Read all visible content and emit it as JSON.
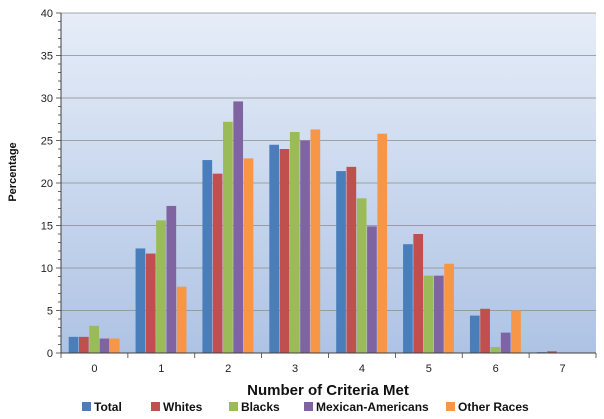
{
  "chart_data": {
    "type": "bar",
    "title": "",
    "xlabel": "Number of Criteria Met",
    "ylabel": "Percentage",
    "categories": [
      "0",
      "1",
      "2",
      "3",
      "4",
      "5",
      "6",
      "7"
    ],
    "ylim": [
      0,
      40
    ],
    "yticks": [
      "0",
      "5",
      "10",
      "15",
      "20",
      "25",
      "30",
      "35",
      "40"
    ],
    "grid": true,
    "legend_position": "bottom",
    "series": [
      {
        "name": "Total",
        "color": "#4a7ebb",
        "values": [
          1.9,
          12.3,
          22.7,
          24.5,
          21.4,
          12.8,
          4.4,
          0.1
        ]
      },
      {
        "name": "Whites",
        "color": "#c0504d",
        "values": [
          1.9,
          11.7,
          21.1,
          24.0,
          21.9,
          14.0,
          5.2,
          0.2
        ]
      },
      {
        "name": "Blacks",
        "color": "#9bbb59",
        "values": [
          3.2,
          15.6,
          27.2,
          26.0,
          18.2,
          9.1,
          0.7,
          0.0
        ]
      },
      {
        "name": "Mexican-Americans",
        "color": "#8064a2",
        "values": [
          1.7,
          17.3,
          29.6,
          25.0,
          14.9,
          9.1,
          2.4,
          0.0
        ]
      },
      {
        "name": "Other Races",
        "color": "#f79646",
        "values": [
          1.7,
          7.8,
          22.9,
          26.3,
          25.8,
          10.5,
          5.0,
          0.0
        ]
      }
    ]
  }
}
